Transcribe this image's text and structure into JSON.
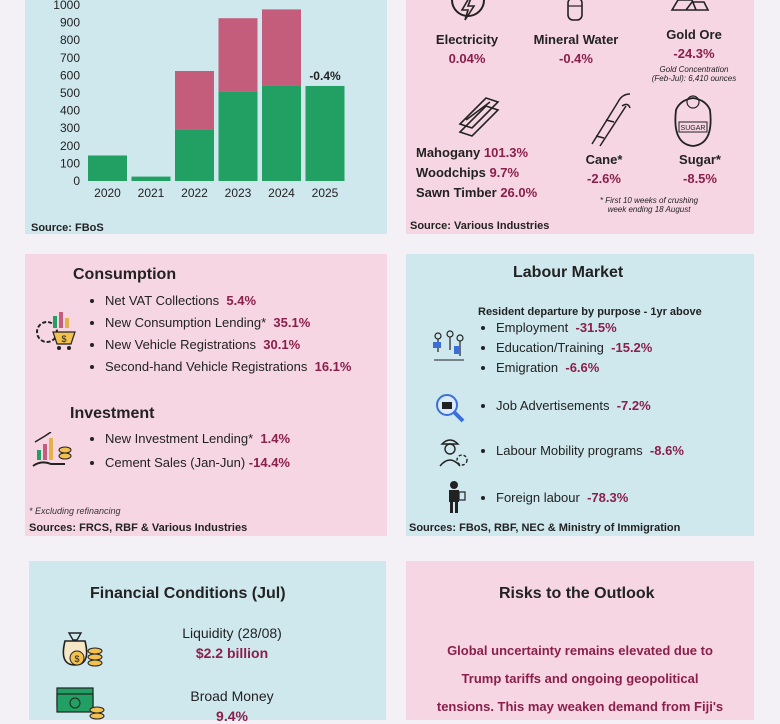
{
  "colors": {
    "wine": "#8b1f4b",
    "green": "#22a064",
    "pink_bar": "#c45c7c",
    "blue_panel": "#cfe8ee",
    "pink_panel": "#f6d6e2"
  },
  "chart_data": {
    "type": "bar",
    "categories": [
      "2020",
      "2021",
      "2022",
      "2023",
      "2024",
      "2025"
    ],
    "series": [
      {
        "values": [
          145,
          25,
          290,
          510,
          540,
          540
        ]
      },
      {
        "values": [
          0,
          0,
          335,
          415,
          435,
          0
        ]
      }
    ],
    "ylim": [
      0,
      1000
    ],
    "yticks": [
      0,
      100,
      200,
      300,
      400,
      500,
      600,
      700,
      800,
      900,
      1000
    ],
    "annotation": "-0.4%",
    "grid": false
  },
  "top_left": {
    "source": "Source: FBoS"
  },
  "top_right": {
    "electricity": {
      "label": "Electricity",
      "value": "0.04%",
      "icon": "electricity-icon"
    },
    "water": {
      "label": "Mineral Water",
      "value": "-0.4%",
      "icon": "bottle-icon"
    },
    "gold": {
      "label": "Gold Ore",
      "value": "-24.3%",
      "note1": "Gold Concentration",
      "note2": "(Feb-Jul): 6,410 ounces",
      "icon": "gold-bars-icon"
    },
    "timber": [
      {
        "label": "Mahogany",
        "value": "101.3%"
      },
      {
        "label": "Woodchips",
        "value": "9.7%"
      },
      {
        "label": "Sawn Timber",
        "value": "26.0%"
      }
    ],
    "cane": {
      "label": "Cane*",
      "value": "-2.6%"
    },
    "sugar": {
      "label": "Sugar*",
      "value": "-8.5%",
      "bag_text": "SUGAR"
    },
    "note1": "* First 10 weeks of crushing",
    "note2": "week ending 18 August",
    "source": "Source: Various Industries"
  },
  "consumption": {
    "title": "Consumption",
    "items": [
      {
        "label": "Net VAT Collections",
        "value": "5.4%"
      },
      {
        "label": "New Consumption Lending*",
        "value": "35.1%"
      },
      {
        "label": "New Vehicle Registrations",
        "value": "30.1%"
      },
      {
        "label": "Second-hand Vehicle Registrations",
        "value": "16.1%"
      }
    ]
  },
  "investment": {
    "title": "Investment",
    "items": [
      {
        "label": "New Investment Lending*",
        "value": "1.4%"
      },
      {
        "label": "Cement Sales (Jan-Jun)",
        "value": "-14.4%"
      }
    ],
    "footnote": "* Excluding refinancing",
    "source": "Sources: FRCS, RBF & Various Industries"
  },
  "labour": {
    "title": "Labour Market",
    "subtitle": "Resident departure by purpose - 1yr above",
    "departures": [
      {
        "label": "Employment",
        "value": "-31.5%"
      },
      {
        "label": "Education/Training",
        "value": "-15.2%"
      },
      {
        "label": "Emigration",
        "value": "-6.6%"
      }
    ],
    "job_ads": {
      "label": "Job Advertisements",
      "value": "-7.2%"
    },
    "mobility": {
      "label": "Labour Mobility programs",
      "value": "-8.6%"
    },
    "foreign": {
      "label": "Foreign labour",
      "value": "-78.3%"
    },
    "source": "Sources: FBoS, RBF, NEC & Ministry of Immigration"
  },
  "financial": {
    "title": "Financial Conditions (Jul)",
    "liquidity_label": "Liquidity (28/08)",
    "liquidity_value": "$2.2 billion",
    "money_label": "Broad Money",
    "money_value": "9.4%"
  },
  "risks": {
    "title": "Risks to the Outlook",
    "lines": [
      "Global uncertainty remains elevated due to",
      "Trump tariffs and ongoing geopolitical",
      "tensions. This may weaken demand from Fiji's"
    ]
  }
}
